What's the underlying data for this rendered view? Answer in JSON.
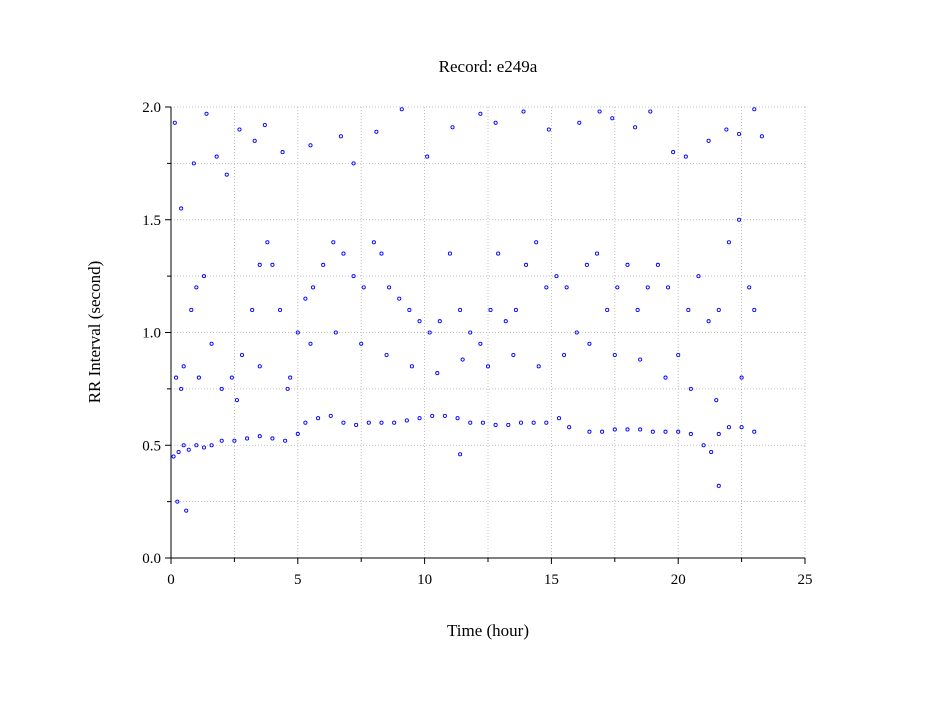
{
  "chart_data": {
    "type": "scatter",
    "title": "Record:  e249a",
    "xlabel": "Time (hour)",
    "ylabel": "RR Interval (second)",
    "xlim": [
      0,
      25
    ],
    "ylim": [
      0.0,
      2.0
    ],
    "x_ticks": [
      0,
      5,
      10,
      15,
      20,
      25
    ],
    "x_tick_labels": [
      "0",
      "5",
      "10",
      "15",
      "20",
      "25"
    ],
    "x_minor_ticks": [
      2.5,
      7.5,
      12.5,
      17.5,
      22.5
    ],
    "y_ticks": [
      0.0,
      0.5,
      1.0,
      1.5,
      2.0
    ],
    "y_tick_labels": [
      "0.0",
      "0.5",
      "1.0",
      "1.5",
      "2.0"
    ],
    "y_minor_ticks": [
      0.25,
      0.75,
      1.25,
      1.75
    ],
    "grid": true,
    "marker": "open-circle",
    "color": "#0000ff",
    "series": [
      {
        "points": [
          [
            0.1,
            0.45
          ],
          [
            0.3,
            0.47
          ],
          [
            0.5,
            0.5
          ],
          [
            0.7,
            0.48
          ],
          [
            1.0,
            0.5
          ],
          [
            1.3,
            0.49
          ],
          [
            1.6,
            0.5
          ],
          [
            2.0,
            0.52
          ],
          [
            2.5,
            0.52
          ],
          [
            3.0,
            0.53
          ],
          [
            3.5,
            0.54
          ],
          [
            4.0,
            0.53
          ],
          [
            4.5,
            0.52
          ],
          [
            5.0,
            0.55
          ],
          [
            5.3,
            0.6
          ],
          [
            5.8,
            0.62
          ],
          [
            6.3,
            0.63
          ],
          [
            6.8,
            0.6
          ],
          [
            7.3,
            0.59
          ],
          [
            7.8,
            0.6
          ],
          [
            8.3,
            0.6
          ],
          [
            8.8,
            0.6
          ],
          [
            9.3,
            0.61
          ],
          [
            9.8,
            0.62
          ],
          [
            10.3,
            0.63
          ],
          [
            10.8,
            0.63
          ],
          [
            11.3,
            0.62
          ],
          [
            11.8,
            0.6
          ],
          [
            12.3,
            0.6
          ],
          [
            12.8,
            0.59
          ],
          [
            13.3,
            0.59
          ],
          [
            13.8,
            0.6
          ],
          [
            14.3,
            0.6
          ],
          [
            14.8,
            0.6
          ],
          [
            15.3,
            0.62
          ],
          [
            15.7,
            0.58
          ],
          [
            16.5,
            0.56
          ],
          [
            17.0,
            0.56
          ],
          [
            17.5,
            0.57
          ],
          [
            18.0,
            0.57
          ],
          [
            18.5,
            0.57
          ],
          [
            19.0,
            0.56
          ],
          [
            19.5,
            0.56
          ],
          [
            20.0,
            0.56
          ],
          [
            20.5,
            0.55
          ],
          [
            21.0,
            0.5
          ],
          [
            21.3,
            0.47
          ],
          [
            21.6,
            0.55
          ],
          [
            22.0,
            0.58
          ],
          [
            22.5,
            0.58
          ],
          [
            23.0,
            0.56
          ],
          [
            0.2,
            0.8
          ],
          [
            0.5,
            0.85
          ],
          [
            0.8,
            1.1
          ],
          [
            1.0,
            1.2
          ],
          [
            1.3,
            1.25
          ],
          [
            1.6,
            0.95
          ],
          [
            2.0,
            0.75
          ],
          [
            2.4,
            0.8
          ],
          [
            2.8,
            0.9
          ],
          [
            3.2,
            1.1
          ],
          [
            3.5,
            1.3
          ],
          [
            3.8,
            1.4
          ],
          [
            4.0,
            1.3
          ],
          [
            4.3,
            1.1
          ],
          [
            4.7,
            0.8
          ],
          [
            5.0,
            1.0
          ],
          [
            5.3,
            1.15
          ],
          [
            5.6,
            1.2
          ],
          [
            6.0,
            1.3
          ],
          [
            6.4,
            1.4
          ],
          [
            6.8,
            1.35
          ],
          [
            7.2,
            1.25
          ],
          [
            7.6,
            1.2
          ],
          [
            8.0,
            1.4
          ],
          [
            8.3,
            1.35
          ],
          [
            8.6,
            1.2
          ],
          [
            9.0,
            1.15
          ],
          [
            9.4,
            1.1
          ],
          [
            9.8,
            1.05
          ],
          [
            10.2,
            1.0
          ],
          [
            10.6,
            1.05
          ],
          [
            11.0,
            1.35
          ],
          [
            11.4,
            1.1
          ],
          [
            11.8,
            1.0
          ],
          [
            12.2,
            0.95
          ],
          [
            12.6,
            1.1
          ],
          [
            12.9,
            1.35
          ],
          [
            13.2,
            1.05
          ],
          [
            13.6,
            1.1
          ],
          [
            14.0,
            1.3
          ],
          [
            14.4,
            1.4
          ],
          [
            14.8,
            1.2
          ],
          [
            15.2,
            1.25
          ],
          [
            15.6,
            1.2
          ],
          [
            16.0,
            1.0
          ],
          [
            16.4,
            1.3
          ],
          [
            16.8,
            1.35
          ],
          [
            17.2,
            1.1
          ],
          [
            17.6,
            1.2
          ],
          [
            18.0,
            1.3
          ],
          [
            18.4,
            1.1
          ],
          [
            18.8,
            1.2
          ],
          [
            19.2,
            1.3
          ],
          [
            19.6,
            1.2
          ],
          [
            20.0,
            0.9
          ],
          [
            20.4,
            1.1
          ],
          [
            20.8,
            1.25
          ],
          [
            21.2,
            1.05
          ],
          [
            21.6,
            1.1
          ],
          [
            22.0,
            1.4
          ],
          [
            22.4,
            1.5
          ],
          [
            22.8,
            1.2
          ],
          [
            23.0,
            1.1
          ],
          [
            0.4,
            0.75
          ],
          [
            1.1,
            0.8
          ],
          [
            2.6,
            0.7
          ],
          [
            3.5,
            0.85
          ],
          [
            4.6,
            0.75
          ],
          [
            5.5,
            0.95
          ],
          [
            6.5,
            1.0
          ],
          [
            7.5,
            0.95
          ],
          [
            8.5,
            0.9
          ],
          [
            9.5,
            0.85
          ],
          [
            10.5,
            0.82
          ],
          [
            11.5,
            0.88
          ],
          [
            12.5,
            0.85
          ],
          [
            13.5,
            0.9
          ],
          [
            14.5,
            0.85
          ],
          [
            15.5,
            0.9
          ],
          [
            16.5,
            0.95
          ],
          [
            17.5,
            0.9
          ],
          [
            18.5,
            0.88
          ],
          [
            19.5,
            0.8
          ],
          [
            20.5,
            0.75
          ],
          [
            21.5,
            0.7
          ],
          [
            22.5,
            0.8
          ],
          [
            0.15,
            1.93
          ],
          [
            0.4,
            1.55
          ],
          [
            0.9,
            1.75
          ],
          [
            1.4,
            1.97
          ],
          [
            1.8,
            1.78
          ],
          [
            2.2,
            1.7
          ],
          [
            2.7,
            1.9
          ],
          [
            3.3,
            1.85
          ],
          [
            3.7,
            1.92
          ],
          [
            4.4,
            1.8
          ],
          [
            5.5,
            1.83
          ],
          [
            6.7,
            1.87
          ],
          [
            7.2,
            1.75
          ],
          [
            8.1,
            1.89
          ],
          [
            9.1,
            1.99
          ],
          [
            10.1,
            1.78
          ],
          [
            11.1,
            1.91
          ],
          [
            12.2,
            1.97
          ],
          [
            12.8,
            1.93
          ],
          [
            13.9,
            1.98
          ],
          [
            14.9,
            1.9
          ],
          [
            16.1,
            1.93
          ],
          [
            16.9,
            1.98
          ],
          [
            17.4,
            1.95
          ],
          [
            18.3,
            1.91
          ],
          [
            18.9,
            1.98
          ],
          [
            19.8,
            1.8
          ],
          [
            20.3,
            1.78
          ],
          [
            21.2,
            1.85
          ],
          [
            21.9,
            1.9
          ],
          [
            22.4,
            1.88
          ],
          [
            23.0,
            1.99
          ],
          [
            23.3,
            1.87
          ],
          [
            0.6,
            0.21
          ],
          [
            0.25,
            0.25
          ],
          [
            21.6,
            0.32
          ],
          [
            11.4,
            0.46
          ]
        ]
      }
    ]
  }
}
